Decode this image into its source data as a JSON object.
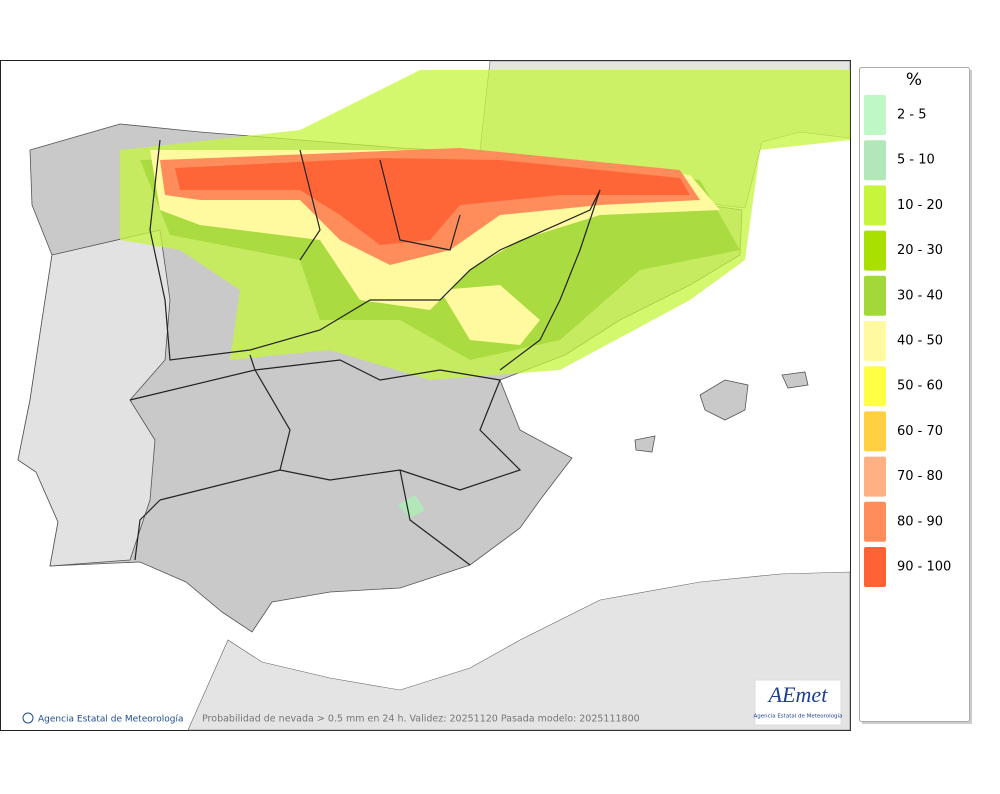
{
  "map": {
    "footer_credit": "Agencia Estatal de Meteorología",
    "footer_caption": "Probabilidad de nevada > 0.5 mm en 24 h. Validez: 20251120 Pasada modelo: 2025111800",
    "logo": {
      "name": "AEmet",
      "subtitle": "Agencia Estatal de Meteorología"
    }
  },
  "legend": {
    "title": "%",
    "items": [
      {
        "label": "2 - 5",
        "color": "#c0f7c6"
      },
      {
        "label": "5 - 10",
        "color": "#b2e8b9"
      },
      {
        "label": "10 - 20",
        "color": "#c6f53c"
      },
      {
        "label": "20 - 30",
        "color": "#a9e000"
      },
      {
        "label": "30 - 40",
        "color": "#a2d83a"
      },
      {
        "label": "40 - 50",
        "color": "#fffaa0"
      },
      {
        "label": "50 - 60",
        "color": "#ffff44"
      },
      {
        "label": "60 - 70",
        "color": "#ffd142"
      },
      {
        "label": "70 - 80",
        "color": "#ffb183"
      },
      {
        "label": "80 - 90",
        "color": "#ff8d5c"
      },
      {
        "label": "90 - 100",
        "color": "#ff6233"
      }
    ]
  }
}
